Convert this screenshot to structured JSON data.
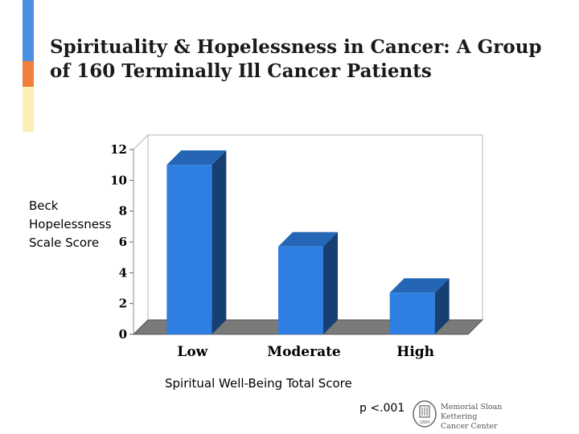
{
  "slide": {
    "title": "Spirituality & Hopelessness in Cancer: A Group of 160 Terminally Ill Cancer Patients",
    "footnote": "p <.001",
    "accent_colors": [
      "#4a90e2",
      "#f07f3c",
      "#fbeeb8"
    ]
  },
  "logo": {
    "line1": "Memorial Sloan Kettering",
    "line2": "Cancer Center",
    "seal_text": "1884",
    "color": "#555555"
  },
  "chart_data": {
    "type": "bar",
    "categories": [
      "Low",
      "Moderate",
      "High"
    ],
    "values": [
      11,
      5.7,
      2.7
    ],
    "title": "",
    "xlabel": "Spiritual Well-Being Total Score",
    "ylabel": "Beck Hopelessness Scale Score",
    "ylim": [
      0,
      12
    ],
    "yticks": [
      0,
      2,
      4,
      6,
      8,
      10,
      12
    ],
    "grid": false,
    "legend": "none",
    "style": "3d",
    "bar_color": "#2f7fe3",
    "bar_side_color": "#163f72",
    "bar_top_color": "#2466b5",
    "floor_color": "#7a7a7a"
  }
}
